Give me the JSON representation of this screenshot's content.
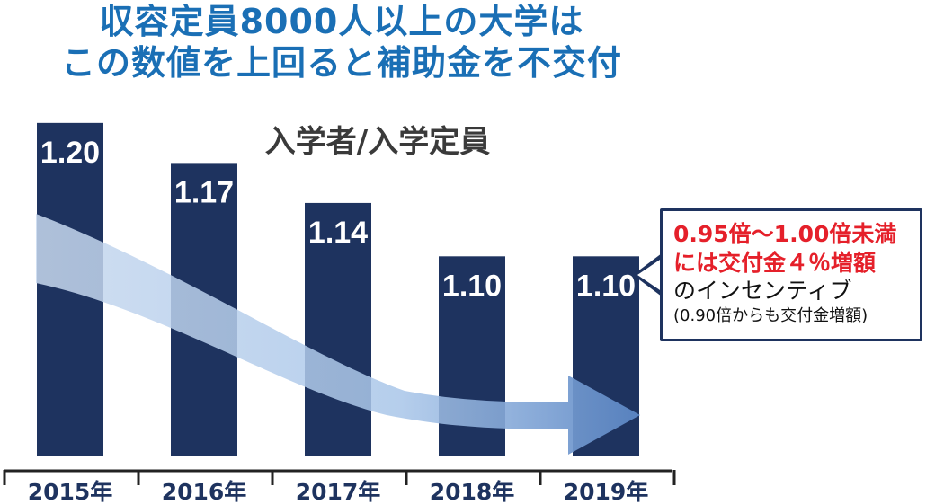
{
  "title_lines": [
    "収容定員8000人以上の大学は",
    "この数値を上回ると補助金を不交付"
  ],
  "colors": {
    "title": "#1a6fb5",
    "bar": "#1e335f",
    "callout_red": "#e5202a",
    "arrow": "#5b86c4"
  },
  "chart_data": {
    "type": "bar",
    "title": "入学者/入学定員",
    "categories": [
      "2015年",
      "2016年",
      "2017年",
      "2018年",
      "2019年"
    ],
    "values": [
      1.2,
      1.17,
      1.14,
      1.1,
      1.1
    ],
    "value_labels": [
      "1.20",
      "1.17",
      "1.14",
      "1.10",
      "1.10"
    ],
    "xlabel": "",
    "ylabel": "",
    "ylim": [
      0.95,
      1.21
    ],
    "grid": false,
    "legend": "none"
  },
  "callout": {
    "line1": "0.95倍～1.00倍未満",
    "line2": "には交付金４％増額",
    "line3": "のインセンティブ",
    "line4": "(0.90倍からも交付金増額)"
  },
  "arrow_icon": "trend-down-arrow-icon"
}
